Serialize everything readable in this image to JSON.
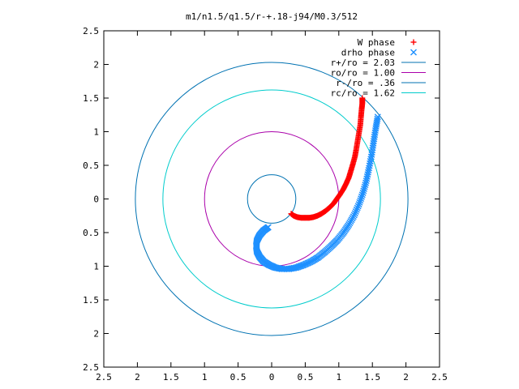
{
  "chart_data": {
    "type": "scatter",
    "title": "m1/n1.5/q1.5/r-+.18-j94/M0.3/512",
    "xlim": [
      -2.5,
      2.5
    ],
    "ylim": [
      -2.5,
      2.5
    ],
    "x_ticks": [
      {
        "value": -2.5,
        "label": "2.5"
      },
      {
        "value": -2,
        "label": "2"
      },
      {
        "value": -1.5,
        "label": "1.5"
      },
      {
        "value": -1,
        "label": "1"
      },
      {
        "value": -0.5,
        "label": "0.5"
      },
      {
        "value": 0,
        "label": "0"
      },
      {
        "value": 0.5,
        "label": "0.5"
      },
      {
        "value": 1,
        "label": "1"
      },
      {
        "value": 1.5,
        "label": "1.5"
      },
      {
        "value": 2,
        "label": "2"
      },
      {
        "value": 2.5,
        "label": "2.5"
      }
    ],
    "y_ticks": [
      {
        "value": 2.5,
        "label": "2.5"
      },
      {
        "value": 2,
        "label": "2"
      },
      {
        "value": 1.5,
        "label": "1.5"
      },
      {
        "value": 1,
        "label": "1"
      },
      {
        "value": 0.5,
        "label": "0.5"
      },
      {
        "value": 0,
        "label": "0"
      },
      {
        "value": -0.5,
        "label": "0.5"
      },
      {
        "value": -1,
        "label": "1"
      },
      {
        "value": -1.5,
        "label": "1.5"
      },
      {
        "value": -2,
        "label": "2"
      },
      {
        "value": -2.5,
        "label": "2.5"
      }
    ],
    "legend_position": "top-right",
    "legend": [
      {
        "label": "W phase",
        "marker": "+",
        "color": "#ff0000"
      },
      {
        "label": "drho phase",
        "marker": "x",
        "color": "#1e90ff"
      },
      {
        "label": "r+/ro = 2.03",
        "marker": "line",
        "color": "#0072b2"
      },
      {
        "label": "ro/ro = 1.00",
        "marker": "line",
        "color": "#aa00aa"
      },
      {
        "label": "r-/ro = .36",
        "marker": "line",
        "color": "#0072b2"
      },
      {
        "label": "rc/ro = 1.62",
        "marker": "line",
        "color": "#00cccc"
      }
    ],
    "circles": [
      {
        "name": "r+/ro = 2.03",
        "radius": 2.03,
        "color": "#0072b2"
      },
      {
        "name": "ro/ro = 1.00",
        "radius": 1.0,
        "color": "#aa00aa"
      },
      {
        "name": "r-/ro = .36",
        "radius": 0.36,
        "color": "#0072b2"
      },
      {
        "name": "rc/ro = 1.62",
        "radius": 1.62,
        "color": "#00cccc"
      }
    ],
    "series": [
      {
        "name": "W phase",
        "marker": "+",
        "color": "#ff0000",
        "points": [
          [
            0.29,
            -0.22
          ],
          [
            0.33,
            -0.25
          ],
          [
            0.38,
            -0.27
          ],
          [
            0.44,
            -0.28
          ],
          [
            0.5,
            -0.28
          ],
          [
            0.56,
            -0.28
          ],
          [
            0.62,
            -0.27
          ],
          [
            0.68,
            -0.25
          ],
          [
            0.74,
            -0.22
          ],
          [
            0.8,
            -0.18
          ],
          [
            0.86,
            -0.13
          ],
          [
            0.92,
            -0.07
          ],
          [
            0.97,
            0.0
          ],
          [
            1.02,
            0.07
          ],
          [
            1.07,
            0.15
          ],
          [
            1.11,
            0.23
          ],
          [
            1.15,
            0.32
          ],
          [
            1.18,
            0.42
          ],
          [
            1.21,
            0.52
          ],
          [
            1.24,
            0.63
          ],
          [
            1.26,
            0.74
          ],
          [
            1.28,
            0.86
          ],
          [
            1.3,
            0.98
          ],
          [
            1.32,
            1.1
          ],
          [
            1.33,
            1.22
          ],
          [
            1.34,
            1.33
          ],
          [
            1.35,
            1.42
          ],
          [
            1.35,
            1.5
          ]
        ]
      },
      {
        "name": "drho phase",
        "marker": "x",
        "color": "#1e90ff",
        "points": [
          [
            -0.05,
            -0.42
          ],
          [
            -0.12,
            -0.47
          ],
          [
            -0.18,
            -0.54
          ],
          [
            -0.22,
            -0.62
          ],
          [
            -0.23,
            -0.7
          ],
          [
            -0.22,
            -0.78
          ],
          [
            -0.18,
            -0.86
          ],
          [
            -0.12,
            -0.93
          ],
          [
            -0.04,
            -0.98
          ],
          [
            0.05,
            -1.02
          ],
          [
            0.15,
            -1.04
          ],
          [
            0.26,
            -1.04
          ],
          [
            0.37,
            -1.02
          ],
          [
            0.48,
            -0.98
          ],
          [
            0.59,
            -0.93
          ],
          [
            0.69,
            -0.87
          ],
          [
            0.79,
            -0.79
          ],
          [
            0.89,
            -0.7
          ],
          [
            0.98,
            -0.61
          ],
          [
            1.07,
            -0.5
          ],
          [
            1.15,
            -0.38
          ],
          [
            1.23,
            -0.24
          ],
          [
            1.3,
            -0.08
          ],
          [
            1.36,
            0.09
          ],
          [
            1.41,
            0.27
          ],
          [
            1.45,
            0.46
          ],
          [
            1.49,
            0.66
          ],
          [
            1.52,
            0.86
          ],
          [
            1.55,
            1.05
          ],
          [
            1.58,
            1.22
          ]
        ]
      }
    ]
  }
}
